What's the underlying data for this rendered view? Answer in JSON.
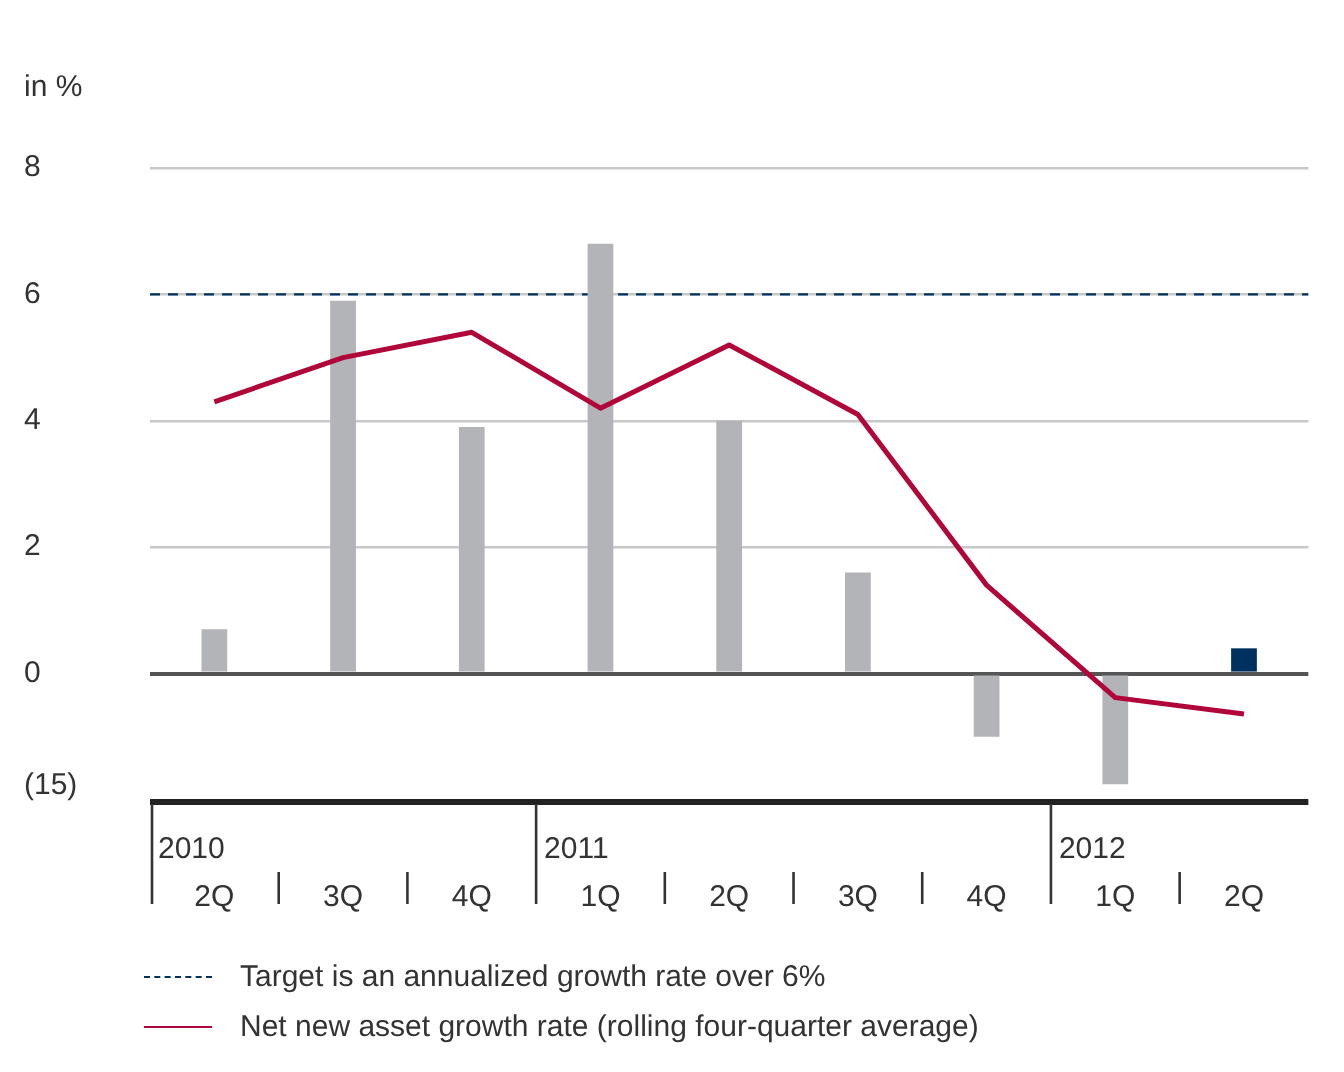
{
  "chart_data": {
    "type": "bar",
    "ylabel": "in %",
    "categories": [
      "2Q",
      "3Q",
      "4Q",
      "1Q",
      "2Q",
      "3Q",
      "4Q",
      "1Q",
      "2Q"
    ],
    "series": [
      {
        "colors": [
          "#b3b4b7",
          "#b3b4b7",
          "#b3b4b7",
          "#b3b4b7",
          "#b3b4b7",
          "#b3b4b7",
          "#b3b4b7",
          "#b3b4b7",
          "#00305e"
        ],
        "values": [
          0.7,
          5.9,
          3.9,
          6.8,
          4.0,
          1.6,
          -1.0,
          -1.75,
          0.4
        ]
      },
      {
        "type": "line",
        "name": "Net new asset growth rate (rolling four-quarter average)",
        "color": "#b0063a",
        "values": [
          4.3,
          5.0,
          5.4,
          4.2,
          5.2,
          4.1,
          1.4,
          -0.38,
          -0.64
        ]
      }
    ],
    "ylim": [
      -2,
      8
    ],
    "yticks": [
      0,
      2,
      4,
      6,
      8
    ],
    "ref_lines": [
      {
        "axis": "y",
        "value": 6,
        "label": "Target is an annualized growth rate over 6%",
        "color": "#00305e",
        "line_style": "dashed"
      }
    ],
    "annotations": [
      "2010",
      "2011",
      "2012",
      "(15)"
    ],
    "grid": "y",
    "legend": "bottom",
    "marker": "none",
    "line_style": "solid"
  }
}
